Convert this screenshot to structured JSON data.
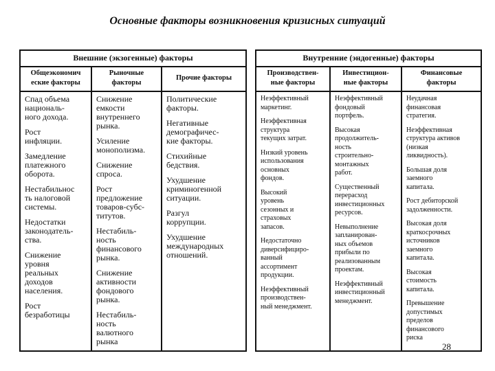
{
  "title": "Основные факторы возникновения кризисных ситуаций",
  "external": {
    "label": "Внешние (экзогенные) факторы",
    "columns": [
      {
        "header": "Общеэкономич\nеские факторы",
        "items": [
          "Спад объема\nнациональ-\nного дохода.",
          "Рост\nинфляции.",
          "Замедление\nплатежного\nоборота.",
          "Нестабильнос\nть налоговой\nсистемы.",
          "Недостатки\nзаконодатель-\nства.",
          "Снижение\nуровня\nреальных\nдоходов\nнаселения.",
          "Рост\nбезработицы"
        ]
      },
      {
        "header": "Рыночные\nфакторы",
        "items": [
          "Снижение\nемкости\nвнутреннего\nрынка.",
          "Усиление\nмонополизма.",
          "Снижение\nспроса.",
          "Рост\nпредложение\nтоваров-субс-\nтитутов.",
          " Нестабиль-\nность\nфинансового\nрынка.",
          "Снижение\nактивности\nфондового\nрынка.",
          "Нестабиль-\nность\nвалютного\nрынка"
        ]
      },
      {
        "header": "Прочие факторы",
        "items": [
          "Политические\nфакторы.",
          "Негативные\nдемографичес-\nкие факторы.",
          "Стихийные\nбедствия.",
          "Ухудшение\nкриминогенной\nситуации.",
          "Разгул\nкоррупции.",
          "Ухудшение\nмеждународных\nотношений."
        ]
      }
    ]
  },
  "internal": {
    "label": "Внутренние (эндогенные) факторы",
    "columns": [
      {
        "header": "Производствен-\nные факторы",
        "items": [
          "Неэффективный\nмаркетинг.",
          "Неэффективная\nструктура\nтекущих затрат.",
          "Низкий уровень\nиспользования\nосновных\nфондов.",
          "Высокий\nуровень\nсезонных и\nстраховых\nзапасов.",
          "Недостаточно\nдиверсифициро-\nванный\nассортимент\nпродукции.",
          "Неэффективный\nпроизводствен-\nный менеджмент."
        ]
      },
      {
        "header": "Инвестицион-\nные факторы",
        "items": [
          "Неэффективный\nфондовый\nпортфель.",
          "Высокая\nпродолжитель-\nность\nстроительно-\nмонтажных\nработ.",
          "Существенный\nперерасход\nинвестиционных\nресурсов.",
          "Невыполнение\nзапланирован-\nных объемов\nприбыли по\nреализованным\nпроектам.",
          "Неэффективный\nинвестиционный\nменеджмент."
        ]
      },
      {
        "header": "Финансовые\nфакторы",
        "items": [
          "Неудачная\nфинансовая\nстратегия.",
          "Неэффективная\nструктура активов\n(низкая\nликвидность).",
          "Большая доля\nзаемного\nкапитала.",
          "Рост дебиторской\nзадолженности.",
          "Высокая доля\nкраткосрочных\nисточников\nзаемного\nкапитала.",
          "Высокая\nстоимость\nкапитала.",
          "Превышение\nдопустимых\nпределов\nфинансового\nриска"
        ]
      }
    ]
  },
  "page_number": "28"
}
